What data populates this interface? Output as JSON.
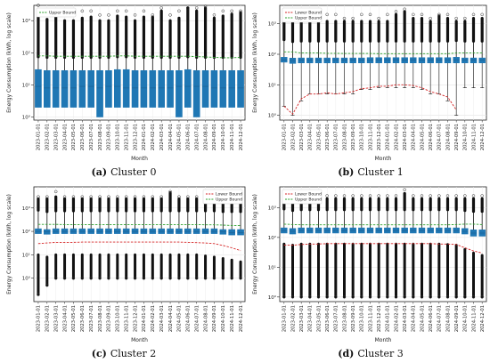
{
  "chart_data": [
    {
      "type": "box",
      "caption_tag": "(a)",
      "caption_text": "Cluster 0",
      "xlabel": "Month",
      "ylabel": "Energy Consumption (kWh, log scale)",
      "y_scale": "log",
      "ylim": [
        0.8,
        3000
      ],
      "y_ticks": [
        1,
        10,
        100,
        1000
      ],
      "y_tick_labels": [
        "10⁰",
        "10¹",
        "10²",
        "10³"
      ],
      "grid": true,
      "legend_position": "top-left",
      "legend": [
        {
          "label": "Upper Bound",
          "color": "#2ca02c",
          "style": "dashed"
        }
      ],
      "box_color": "#1f77b4",
      "categories": [
        "2023-01-01",
        "2023-02-01",
        "2023-03-01",
        "2023-04-01",
        "2023-05-01",
        "2023-06-01",
        "2023-07-01",
        "2023-08-01",
        "2023-09-01",
        "2023-10-01",
        "2023-11-01",
        "2023-12-01",
        "2024-01-01",
        "2024-02-01",
        "2024-03-01",
        "2024-04-01",
        "2024-05-01",
        "2024-06-01",
        "2024-07-01",
        "2024-08-01",
        "2024-09-01",
        "2024-10-01",
        "2024-11-01",
        "2024-12-01"
      ],
      "q1": [
        2,
        2,
        2,
        2,
        2,
        2,
        2,
        1,
        2,
        2,
        2,
        2,
        2,
        2,
        2,
        2,
        1,
        2,
        1,
        2,
        2,
        2,
        2,
        2
      ],
      "median": [
        9,
        8,
        8,
        8,
        8,
        9,
        9,
        8,
        9,
        9,
        8,
        8,
        8,
        8,
        8,
        8,
        9,
        9,
        9,
        9,
        8,
        8,
        8,
        8
      ],
      "q3": [
        30,
        28,
        28,
        28,
        28,
        28,
        28,
        28,
        28,
        30,
        30,
        28,
        28,
        28,
        28,
        28,
        28,
        30,
        28,
        28,
        28,
        28,
        28,
        28
      ],
      "whisker_high": [
        75,
        72,
        72,
        72,
        72,
        72,
        72,
        72,
        72,
        75,
        75,
        72,
        72,
        72,
        72,
        72,
        72,
        75,
        72,
        72,
        72,
        72,
        72,
        72
      ],
      "outlier_max": [
        1500,
        1100,
        1300,
        1000,
        1000,
        1200,
        1300,
        1000,
        1000,
        1400,
        1300,
        1000,
        1300,
        1300,
        2000,
        1000,
        1200,
        2500,
        2000,
        2500,
        1200,
        1400,
        1600,
        1800
      ],
      "outlier_top": [
        3000,
        2000,
        1500,
        1500,
        1500,
        2000,
        2000,
        1500,
        1500,
        2000,
        2000,
        1500,
        2000,
        1500,
        2500,
        1500,
        2000,
        2500,
        2500,
        2800,
        1500,
        2000,
        2000,
        2000
      ],
      "lower_bound": [],
      "upper_bound": [
        80,
        80,
        78,
        78,
        78,
        78,
        78,
        78,
        78,
        80,
        80,
        78,
        78,
        78,
        78,
        78,
        78,
        78,
        76,
        74,
        72,
        70,
        70,
        72
      ]
    },
    {
      "type": "box",
      "caption_tag": "(b)",
      "caption_text": "Cluster 1",
      "xlabel": "Month",
      "ylabel": "Energy Consumption (kWh, log scale)",
      "y_scale": "log",
      "ylim": [
        0.7,
        4000
      ],
      "y_ticks": [
        1,
        10,
        100,
        1000
      ],
      "y_tick_labels": [
        "10⁰",
        "10¹",
        "10²",
        "10³"
      ],
      "grid": true,
      "legend_position": "top-left",
      "legend": [
        {
          "label": "Lower Bound",
          "color": "#d62728",
          "style": "dashed"
        },
        {
          "label": "Upper Bound",
          "color": "#2ca02c",
          "style": "dashed"
        }
      ],
      "box_color": "#1f77b4",
      "categories": [
        "2023-01-01",
        "2023-02-01",
        "2023-03-01",
        "2023-04-01",
        "2023-05-01",
        "2023-06-01",
        "2023-07-01",
        "2023-08-01",
        "2023-09-01",
        "2023-10-01",
        "2023-11-01",
        "2023-12-01",
        "2024-01-01",
        "2024-02-01",
        "2024-03-01",
        "2024-04-01",
        "2024-05-01",
        "2024-06-01",
        "2024-07-01",
        "2024-08-01",
        "2024-09-01",
        "2024-10-01",
        "2024-11-01",
        "2024-12-01"
      ],
      "q1": [
        55,
        50,
        52,
        52,
        52,
        52,
        52,
        52,
        52,
        52,
        52,
        52,
        52,
        52,
        52,
        52,
        52,
        52,
        52,
        52,
        52,
        52,
        52,
        52
      ],
      "median": [
        65,
        62,
        64,
        64,
        64,
        64,
        64,
        64,
        64,
        64,
        64,
        64,
        64,
        64,
        64,
        64,
        64,
        64,
        64,
        64,
        64,
        64,
        64,
        64
      ],
      "q3": [
        80,
        75,
        76,
        76,
        76,
        76,
        76,
        76,
        76,
        76,
        78,
        78,
        78,
        78,
        78,
        78,
        78,
        78,
        78,
        78,
        80,
        76,
        76,
        76
      ],
      "whisker_high": [
        300,
        260,
        270,
        270,
        270,
        270,
        270,
        270,
        270,
        270,
        270,
        270,
        270,
        270,
        270,
        270,
        270,
        270,
        270,
        270,
        280,
        270,
        270,
        270
      ],
      "whisker_low": [
        2,
        1,
        3,
        5,
        5,
        5,
        5,
        5,
        5,
        7,
        7,
        8,
        8,
        8,
        8,
        8,
        7,
        5,
        5,
        3,
        1,
        8,
        8,
        8
      ],
      "outlier_max": [
        1500,
        1500,
        1200,
        1200,
        1200,
        1200,
        1200,
        1200,
        1200,
        1200,
        1200,
        1200,
        1200,
        2000,
        2500,
        1500,
        1500,
        1200,
        1800,
        1500,
        1200,
        1200,
        1500,
        1500
      ],
      "outlier_top": [
        2000,
        2000,
        2000,
        1500,
        1500,
        2000,
        2000,
        1500,
        1500,
        2000,
        2000,
        1500,
        2000,
        2500,
        3000,
        2000,
        2000,
        1500,
        2000,
        2000,
        1500,
        1500,
        2000,
        2000
      ],
      "lower_bound": [
        2,
        1.1,
        3.5,
        5,
        5,
        5.5,
        5,
        5.5,
        6,
        7.5,
        8,
        9,
        9,
        10,
        10,
        9.5,
        8,
        6,
        5,
        4,
        1.5,
        null,
        null,
        null
      ],
      "upper_bound": [
        120,
        120,
        110,
        110,
        110,
        108,
        108,
        106,
        106,
        106,
        106,
        105,
        105,
        105,
        105,
        105,
        105,
        105,
        105,
        105,
        110,
        110,
        110,
        110
      ]
    },
    {
      "type": "box",
      "caption_tag": "(c)",
      "caption_text": "Cluster 2",
      "xlabel": "Month",
      "ylabel": "Energy Consumption (kWh, log scale)",
      "y_scale": "log",
      "ylim": [
        0.1,
        8000
      ],
      "y_ticks": [
        1,
        10,
        100,
        1000
      ],
      "y_tick_labels": [
        "10⁰",
        "10¹",
        "10²",
        "10³"
      ],
      "grid": true,
      "legend_position": "top-right",
      "legend": [
        {
          "label": "Lower Bound",
          "color": "#d62728",
          "style": "dashed"
        },
        {
          "label": "Upper Bound",
          "color": "#2ca02c",
          "style": "dashed"
        }
      ],
      "box_color": "#1f77b4",
      "categories": [
        "2023-01-01",
        "2023-02-01",
        "2023-03-01",
        "2023-04-01",
        "2023-05-01",
        "2023-06-01",
        "2023-07-01",
        "2023-08-01",
        "2023-09-01",
        "2023-10-01",
        "2023-11-01",
        "2023-12-01",
        "2024-01-01",
        "2024-02-01",
        "2024-03-01",
        "2024-04-01",
        "2024-05-01",
        "2024-06-01",
        "2024-07-01",
        "2024-08-01",
        "2024-09-01",
        "2024-10-01",
        "2024-11-01",
        "2024-12-01"
      ],
      "q1": [
        80,
        75,
        80,
        80,
        80,
        80,
        80,
        80,
        80,
        80,
        80,
        80,
        80,
        80,
        80,
        80,
        80,
        80,
        80,
        80,
        80,
        75,
        70,
        70
      ],
      "median": [
        100,
        95,
        100,
        100,
        100,
        100,
        100,
        100,
        100,
        100,
        100,
        100,
        100,
        100,
        100,
        100,
        100,
        100,
        100,
        100,
        100,
        95,
        90,
        90
      ],
      "q3": [
        130,
        120,
        130,
        130,
        130,
        130,
        130,
        130,
        130,
        130,
        130,
        130,
        130,
        130,
        130,
        130,
        130,
        130,
        130,
        130,
        130,
        120,
        120,
        120
      ],
      "whisker_high": [
        800,
        700,
        750,
        750,
        750,
        750,
        750,
        750,
        750,
        750,
        750,
        750,
        750,
        750,
        750,
        750,
        750,
        750,
        750,
        750,
        750,
        700,
        700,
        700
      ],
      "whisker_low": [
        10,
        8,
        10,
        10,
        10,
        10,
        10,
        10,
        10,
        10,
        10,
        10,
        10,
        10,
        10,
        10,
        10,
        10,
        10,
        9,
        8,
        7,
        6,
        5
      ],
      "outlier_max": [
        2500,
        2500,
        3000,
        2500,
        2500,
        2500,
        2500,
        2500,
        2500,
        2500,
        2500,
        2500,
        2500,
        2500,
        2500,
        4500,
        2500,
        2500,
        2500,
        3000,
        2500,
        2500,
        2500,
        2500
      ],
      "outlier_top": [
        3000,
        3000,
        5000,
        3000,
        3000,
        3000,
        3000,
        3000,
        3000,
        3000,
        3000,
        3000,
        3000,
        3000,
        3000,
        5000,
        3000,
        3000,
        3000,
        3500,
        3000,
        3000,
        3000,
        3000
      ],
      "outlier_min": [
        0.2,
        0.5,
        1,
        1,
        1,
        1,
        1,
        1,
        1,
        1,
        1,
        1,
        1,
        1,
        1,
        1,
        1,
        1,
        1,
        1,
        1,
        1,
        1,
        1
      ],
      "lower_bound": [
        30,
        32,
        34,
        34,
        34,
        35,
        35,
        35,
        35,
        35,
        35,
        35,
        35,
        35,
        35,
        35,
        35,
        34,
        33,
        32,
        30,
        25,
        20,
        15
      ],
      "upper_bound": [
        200,
        200,
        200,
        195,
        195,
        195,
        195,
        195,
        195,
        195,
        195,
        195,
        195,
        195,
        195,
        195,
        195,
        195,
        195,
        190,
        190,
        185,
        180,
        180
      ]
    },
    {
      "type": "box",
      "caption_tag": "(d)",
      "caption_text": "Cluster 3",
      "xlabel": "Month",
      "ylabel": "Energy Consumption (kWh, log scale)",
      "y_scale": "log",
      "ylim": [
        0.7,
        5000
      ],
      "y_ticks": [
        1,
        10,
        100,
        1000
      ],
      "y_tick_labels": [
        "10⁰",
        "10¹",
        "10²",
        "10³"
      ],
      "grid": true,
      "legend_position": "top-left",
      "legend": [
        {
          "label": "Lower Bound",
          "color": "#d62728",
          "style": "dashed"
        },
        {
          "label": "Upper Bound",
          "color": "#2ca02c",
          "style": "dashed"
        }
      ],
      "box_color": "#1f77b4",
      "categories": [
        "2023-01-01",
        "2023-02-01",
        "2023-03-01",
        "2023-04-01",
        "2023-05-01",
        "2023-06-01",
        "2023-07-01",
        "2023-08-01",
        "2023-09-01",
        "2023-10-01",
        "2023-11-01",
        "2023-12-01",
        "2024-01-01",
        "2024-02-01",
        "2024-03-01",
        "2024-04-01",
        "2024-05-01",
        "2024-06-01",
        "2024-07-01",
        "2024-08-01",
        "2024-09-01",
        "2024-10-01",
        "2024-11-01",
        "2024-12-01"
      ],
      "q1": [
        140,
        130,
        140,
        140,
        140,
        140,
        140,
        140,
        140,
        140,
        140,
        140,
        140,
        140,
        140,
        140,
        140,
        140,
        140,
        140,
        140,
        130,
        110,
        110
      ],
      "median": [
        170,
        160,
        170,
        170,
        170,
        170,
        170,
        170,
        170,
        170,
        170,
        170,
        170,
        170,
        170,
        170,
        170,
        170,
        170,
        170,
        170,
        160,
        140,
        140
      ],
      "q3": [
        210,
        200,
        210,
        210,
        210,
        210,
        210,
        210,
        210,
        210,
        210,
        210,
        210,
        210,
        210,
        210,
        210,
        210,
        210,
        210,
        210,
        200,
        180,
        180
      ],
      "whisker_high": [
        900,
        800,
        850,
        850,
        850,
        850,
        850,
        850,
        850,
        850,
        850,
        850,
        850,
        850,
        850,
        850,
        850,
        850,
        850,
        850,
        850,
        800,
        750,
        750
      ],
      "whisker_low": [
        60,
        55,
        60,
        60,
        60,
        60,
        60,
        60,
        60,
        60,
        60,
        60,
        60,
        60,
        60,
        60,
        60,
        60,
        60,
        58,
        55,
        40,
        30,
        25
      ],
      "outlier_max": [
        2000,
        2000,
        2000,
        2000,
        2000,
        2000,
        2000,
        2000,
        2000,
        2000,
        2000,
        2000,
        2000,
        2000,
        3000,
        2000,
        2000,
        2000,
        2000,
        2000,
        2000,
        2000,
        2000,
        2000
      ],
      "outlier_top": [
        2500,
        2500,
        2500,
        2500,
        2500,
        2500,
        2500,
        2500,
        2500,
        2500,
        2500,
        2500,
        2500,
        2500,
        4000,
        2500,
        2500,
        2500,
        2500,
        2500,
        2500,
        2500,
        2500,
        2500
      ],
      "outlier_min": [
        1,
        1,
        1,
        1,
        1,
        1,
        1,
        1,
        1,
        1,
        1,
        1,
        1,
        1,
        1,
        1,
        1,
        1,
        1,
        1,
        1,
        1,
        1,
        1
      ],
      "lower_bound": [
        55,
        55,
        58,
        60,
        60,
        62,
        62,
        62,
        62,
        62,
        62,
        62,
        62,
        62,
        62,
        62,
        62,
        62,
        60,
        60,
        58,
        45,
        35,
        30
      ],
      "upper_bound": [
        280,
        270,
        265,
        265,
        265,
        265,
        265,
        265,
        265,
        265,
        265,
        265,
        265,
        265,
        265,
        265,
        265,
        265,
        265,
        265,
        270,
        280,
        280,
        270
      ]
    }
  ]
}
